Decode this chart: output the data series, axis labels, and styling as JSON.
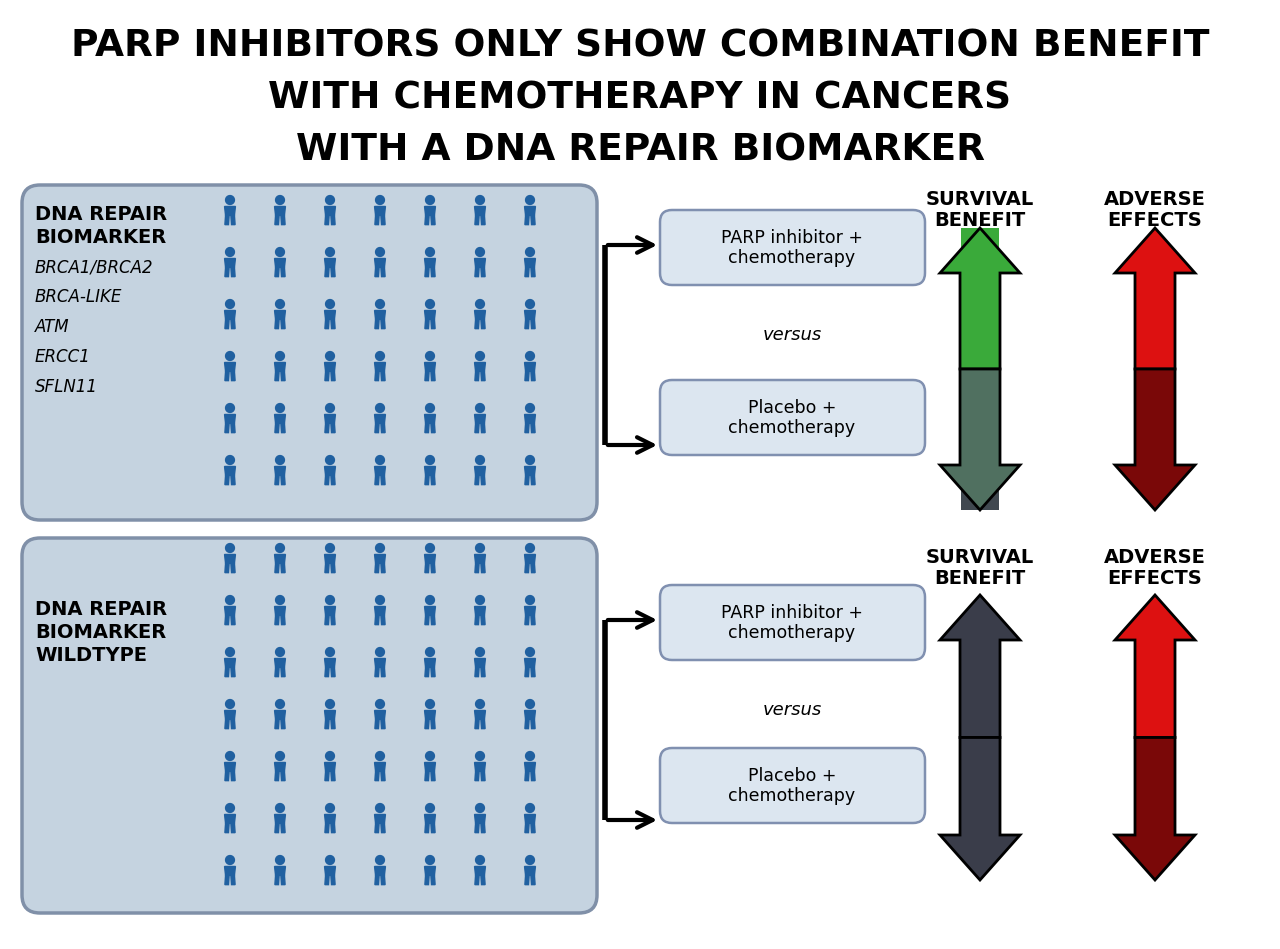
{
  "title_line1": "PARP INHIBITORS ONLY SHOW COMBINATION BENEFIT",
  "title_line2": "WITH CHEMOTHERAPY IN CANCERS",
  "title_line3": "WITH A DNA REPAIR BIOMARKER",
  "bg_color": "#ffffff",
  "panel_bg": "#c5d3e0",
  "panel_border": "#8090a8",
  "box_bg": "#dce6f0",
  "box_border": "#8090b0",
  "person_color": "#2060a0",
  "top_panel_label1": "DNA REPAIR",
  "top_panel_label2": "BIOMARKER",
  "top_panel_italic": [
    "BRCA1/BRCA2",
    "BRCA-LIKE",
    "ATM",
    "ERCC1",
    "SFLN11"
  ],
  "bottom_panel_label": "DNA REPAIR\nBIOMARKER\nWILDTYPE",
  "box1_text": "PARP inhibitor +\nchemotherapy",
  "versus_text": "versus",
  "box2_text": "Placebo +\nchemotherapy",
  "survival_label": "SURVIVAL\nBENEFIT",
  "adverse_label": "ADVERSE\nEFFECTS",
  "green_bright": "#3aaa3a",
  "green_dark": "#507060",
  "red_bright": "#dd1111",
  "red_dark": "#7a0808",
  "gray_dark": "#3a3d4a",
  "gray_light": "#6a6d7a"
}
